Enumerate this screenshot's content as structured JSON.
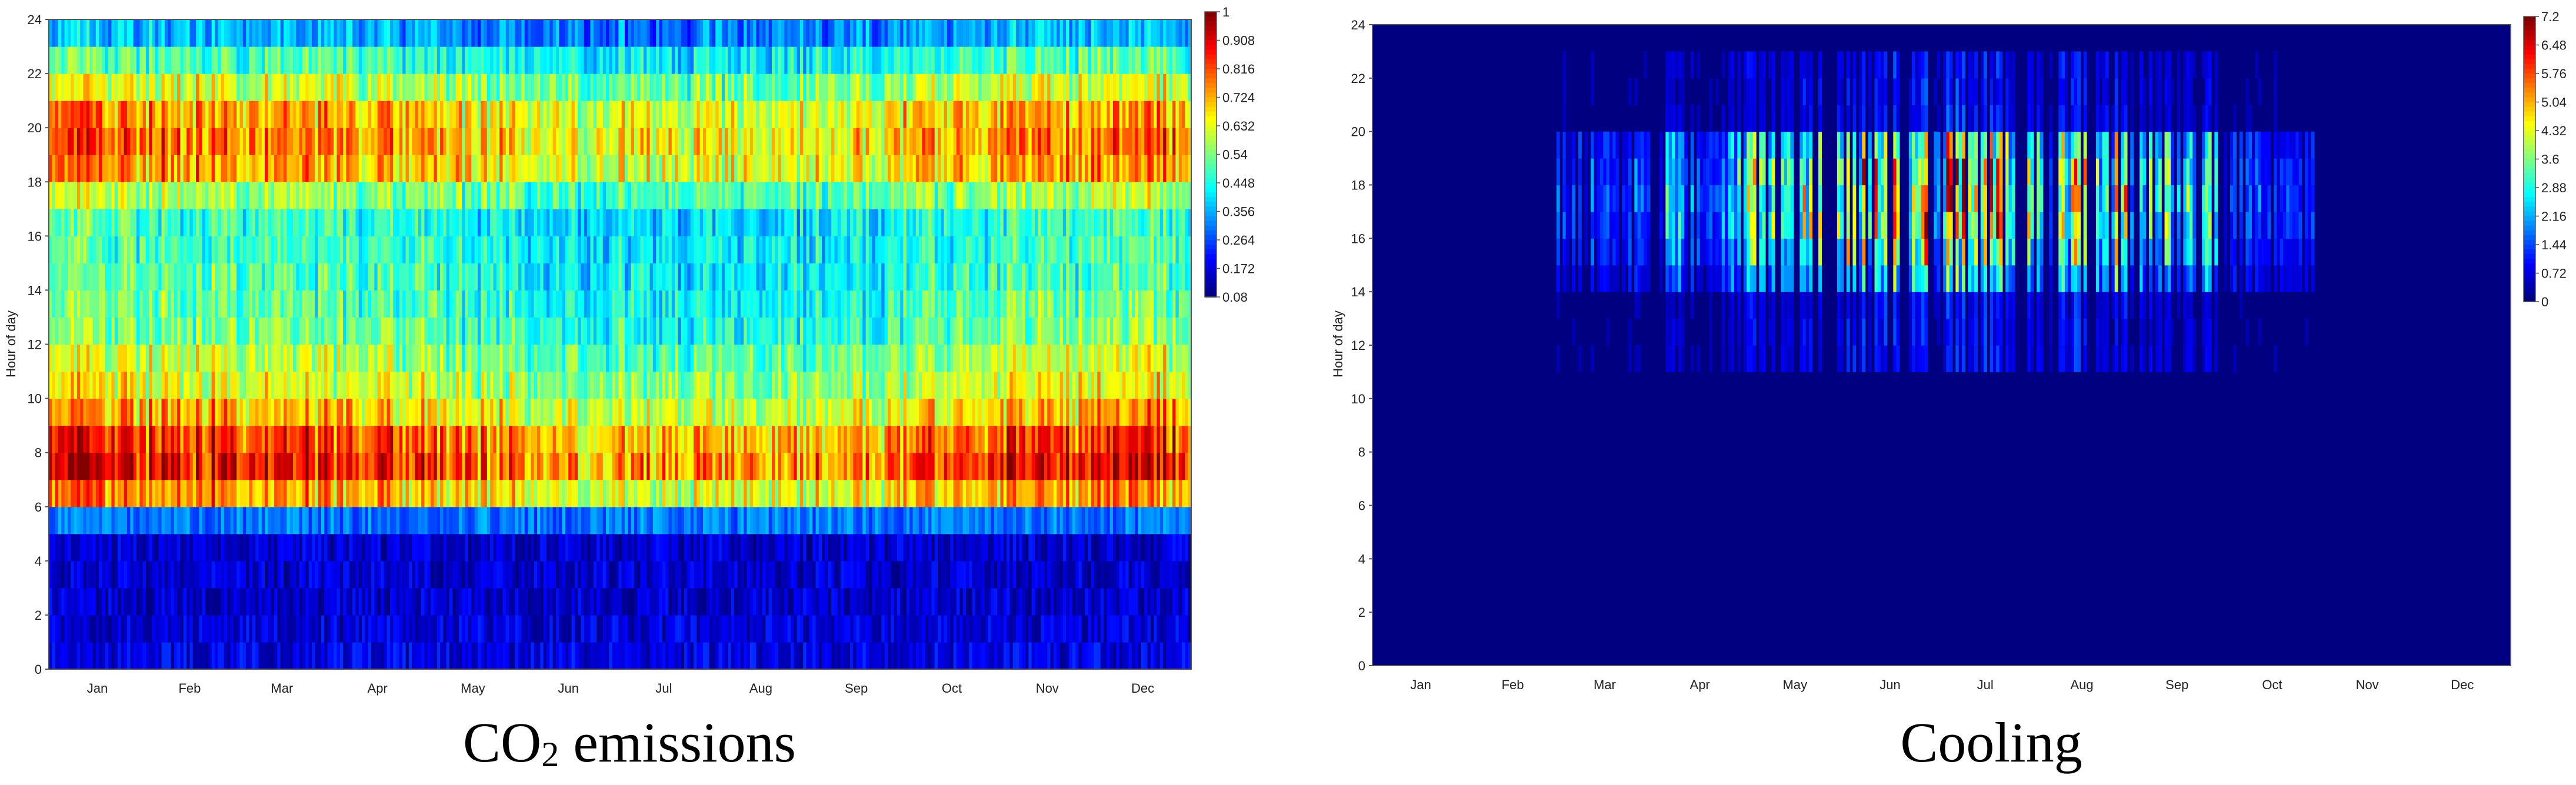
{
  "chart_data": [
    {
      "type": "heatmap",
      "title": "",
      "caption_main": "CO",
      "caption_sub": "2",
      "caption_rest": " emissions",
      "xlabel": "",
      "ylabel": "Hour of day",
      "x_ticks": [
        "Jan",
        "Feb",
        "Mar",
        "Apr",
        "May",
        "Jun",
        "Jul",
        "Aug",
        "Sep",
        "Oct",
        "Nov",
        "Dec"
      ],
      "y_ticks": [
        "0",
        "2",
        "4",
        "6",
        "8",
        "10",
        "12",
        "14",
        "16",
        "18",
        "20",
        "22",
        "24"
      ],
      "ylim": [
        0,
        24
      ],
      "colorbar_ticks": [
        "1",
        "0.908",
        "0.816",
        "0.724",
        "0.632",
        "0.54",
        "0.448",
        "0.356",
        "0.264",
        "0.172",
        "0.08"
      ],
      "colorbar_range": [
        0.08,
        1
      ],
      "hourly_mean_by_hour": [
        0.17,
        0.16,
        0.15,
        0.15,
        0.15,
        0.3,
        0.72,
        0.86,
        0.82,
        0.7,
        0.62,
        0.58,
        0.52,
        0.5,
        0.48,
        0.47,
        0.46,
        0.56,
        0.72,
        0.75,
        0.72,
        0.6,
        0.48,
        0.35
      ],
      "seasonal_multiplier_by_month": [
        1.05,
        1.05,
        1.02,
        0.98,
        0.92,
        0.85,
        0.86,
        0.86,
        0.9,
        0.98,
        1.02,
        1.05
      ],
      "grid": false
    },
    {
      "type": "heatmap",
      "title": "",
      "caption": "Cooling",
      "xlabel": "",
      "ylabel": "Hour of day",
      "x_ticks": [
        "Jan",
        "Feb",
        "Mar",
        "Apr",
        "May",
        "Jun",
        "Jul",
        "Aug",
        "Sep",
        "Oct",
        "Nov",
        "Dec"
      ],
      "y_ticks": [
        "0",
        "2",
        "4",
        "6",
        "8",
        "10",
        "12",
        "14",
        "16",
        "18",
        "20",
        "22",
        "24"
      ],
      "ylim": [
        0,
        24
      ],
      "colorbar_ticks": [
        "7.2",
        "6.48",
        "5.76",
        "5.04",
        "4.32",
        "3.6",
        "2.88",
        "2.16",
        "1.44",
        "0.72",
        "0"
      ],
      "colorbar_range": [
        0,
        7.2
      ],
      "active_months": [
        "Mar",
        "Apr",
        "May",
        "Jun",
        "Jul",
        "Aug",
        "Sep",
        "Oct"
      ],
      "active_hours": [
        11,
        23
      ],
      "peak_hours": [
        14,
        20
      ],
      "peak_value": 7.2,
      "grid": false
    }
  ]
}
